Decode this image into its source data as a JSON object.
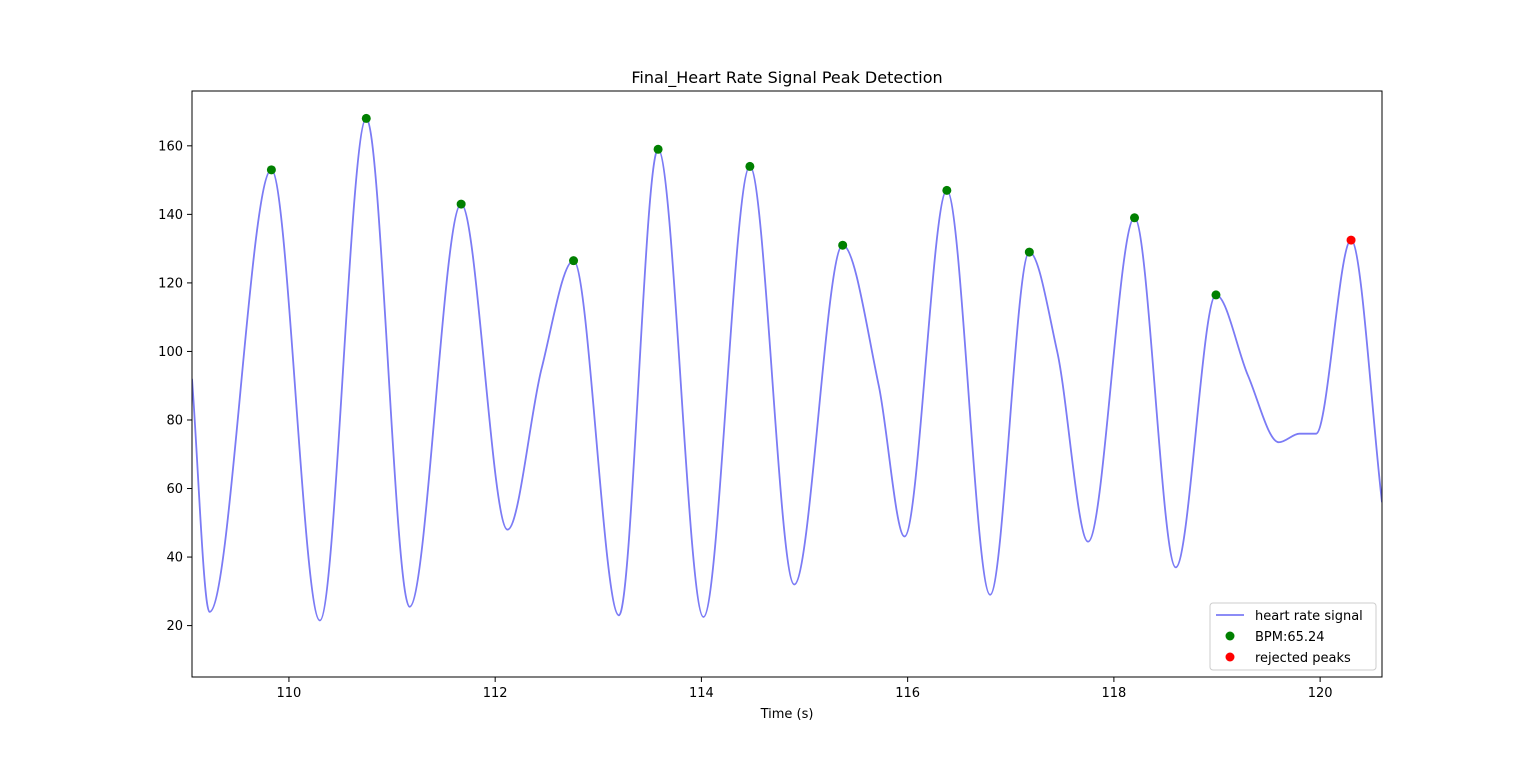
{
  "chart_data": {
    "type": "line",
    "title": "Final_Heart Rate Signal Peak Detection",
    "xlabel": "Time (s)",
    "ylabel": "",
    "xlim": [
      109.06,
      120.6
    ],
    "ylim": [
      5,
      176
    ],
    "xticks": [
      110,
      112,
      114,
      116,
      118,
      120
    ],
    "yticks": [
      20,
      40,
      60,
      80,
      100,
      120,
      140,
      160
    ],
    "legend_position": "lower-right",
    "colors": {
      "signal": "#7b7bf5",
      "accepted": "#008000",
      "rejected": "#ff0000"
    },
    "series": [
      {
        "name": "heart rate signal",
        "kind": "line",
        "knots": [
          [
            109.06,
            92
          ],
          [
            109.23,
            24
          ],
          [
            109.83,
            153
          ],
          [
            110.3,
            21.5
          ],
          [
            110.75,
            168
          ],
          [
            111.17,
            25.5
          ],
          [
            111.67,
            143
          ],
          [
            112.12,
            48
          ],
          [
            112.45,
            95
          ],
          [
            112.76,
            126.5
          ],
          [
            113.2,
            23
          ],
          [
            113.58,
            159
          ],
          [
            114.02,
            22.5
          ],
          [
            114.47,
            154
          ],
          [
            114.9,
            32
          ],
          [
            115.37,
            131
          ],
          [
            115.72,
            90
          ],
          [
            115.97,
            46
          ],
          [
            116.38,
            147
          ],
          [
            116.8,
            29
          ],
          [
            117.18,
            129
          ],
          [
            117.45,
            100
          ],
          [
            117.75,
            44.5
          ],
          [
            118.2,
            139
          ],
          [
            118.6,
            37
          ],
          [
            118.99,
            116.5
          ],
          [
            119.3,
            93
          ],
          [
            119.6,
            73.5
          ],
          [
            119.8,
            76
          ],
          [
            119.96,
            76
          ],
          [
            120.3,
            132.5
          ],
          [
            120.6,
            56
          ]
        ]
      },
      {
        "name": "BPM:65.24",
        "kind": "scatter",
        "x": [
          109.83,
          110.75,
          111.67,
          112.76,
          113.58,
          114.47,
          115.37,
          116.38,
          117.18,
          118.2,
          118.99
        ],
        "y": [
          153,
          168,
          143,
          126.5,
          159,
          154,
          131,
          147,
          129,
          139,
          116.5
        ]
      },
      {
        "name": "rejected peaks",
        "kind": "scatter",
        "x": [
          120.3
        ],
        "y": [
          132.5
        ]
      }
    ]
  }
}
